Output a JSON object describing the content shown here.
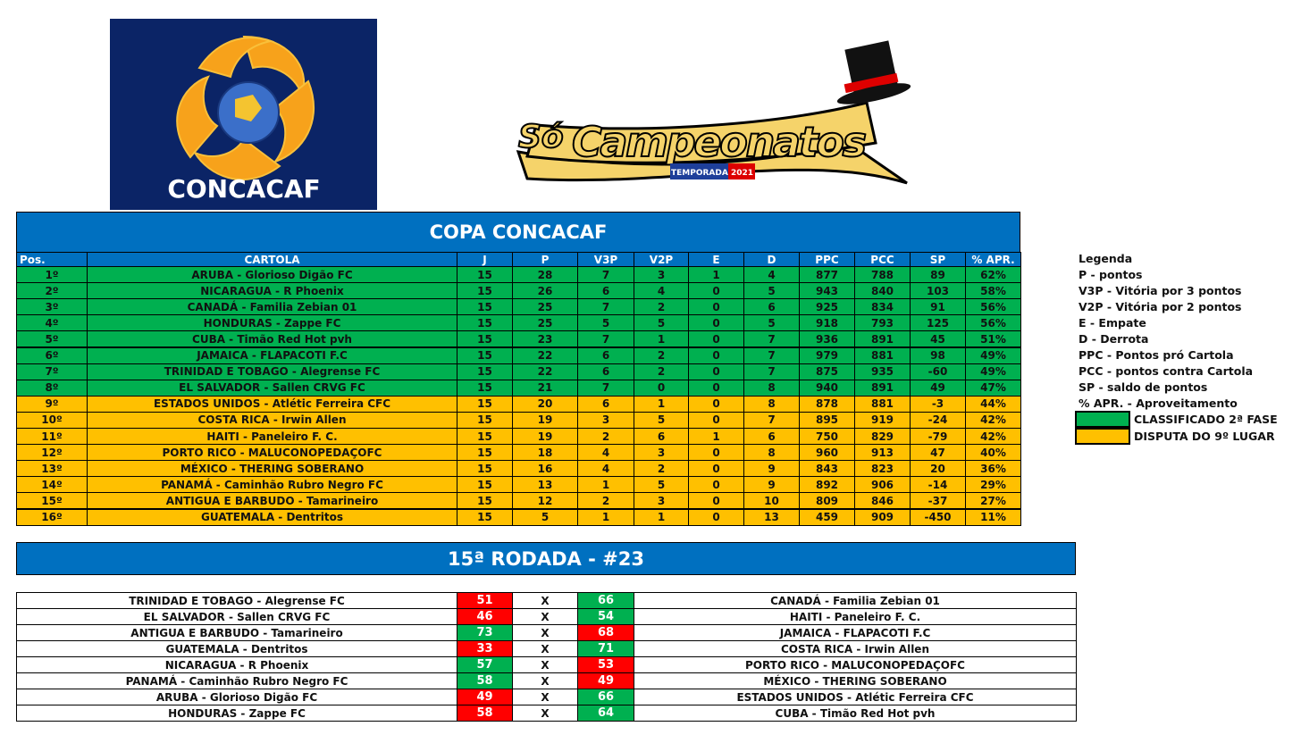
{
  "logos": {
    "concacaf": "CONCACAF",
    "brand_top": "Só",
    "brand_main": "Campeonatos",
    "brand_season": "TEMPORADA 2021"
  },
  "standings": {
    "title": "COPA CONCACAF",
    "columns": [
      "Pos.",
      "CARTOLA",
      "J",
      "P",
      "V3P",
      "V2P",
      "E",
      "D",
      "PPC",
      "PCC",
      "SP",
      "% APR."
    ],
    "rows": [
      {
        "color": "#00b050",
        "cells": [
          "1º",
          "ARUBA - Glorioso Digão FC",
          15,
          28,
          7,
          3,
          1,
          4,
          877,
          788,
          89,
          "62%"
        ]
      },
      {
        "color": "#00b050",
        "cells": [
          "2º",
          "NICARAGUA - R Phoenix",
          15,
          26,
          6,
          4,
          0,
          5,
          943,
          840,
          103,
          "58%"
        ]
      },
      {
        "color": "#00b050",
        "cells": [
          "3º",
          "CANADÁ - Familia Zebian 01",
          15,
          25,
          7,
          2,
          0,
          6,
          925,
          834,
          91,
          "56%"
        ]
      },
      {
        "color": "#00b050",
        "cells": [
          "4º",
          "HONDURAS - Zappe FC",
          15,
          25,
          5,
          5,
          0,
          5,
          918,
          793,
          125,
          "56%"
        ]
      },
      {
        "color": "#00b050",
        "cells": [
          "5º",
          "CUBA - Timão Red Hot pvh",
          15,
          23,
          7,
          1,
          0,
          7,
          936,
          891,
          45,
          "51%"
        ]
      },
      {
        "color": "#00b050",
        "cells": [
          "6º",
          "JAMAICA - FLAPACOTI F.C",
          15,
          22,
          6,
          2,
          0,
          7,
          979,
          881,
          98,
          "49%"
        ]
      },
      {
        "color": "#00b050",
        "cells": [
          "7º",
          "TRINIDAD E TOBAGO - Alegrense FC",
          15,
          22,
          6,
          2,
          0,
          7,
          875,
          935,
          -60,
          "49%"
        ]
      },
      {
        "color": "#00b050",
        "cells": [
          "8º",
          "EL SALVADOR - Sallen CRVG FC",
          15,
          21,
          7,
          0,
          0,
          8,
          940,
          891,
          49,
          "47%"
        ]
      },
      {
        "color": "#ffc000",
        "cells": [
          "9º",
          "ESTADOS UNIDOS - Atlétic Ferreira CFC",
          15,
          20,
          6,
          1,
          0,
          8,
          878,
          881,
          -3,
          "44%"
        ]
      },
      {
        "color": "#ffc000",
        "cells": [
          "10º",
          "COSTA RICA - Irwin Allen",
          15,
          19,
          3,
          5,
          0,
          7,
          895,
          919,
          -24,
          "42%"
        ]
      },
      {
        "color": "#ffc000",
        "cells": [
          "11º",
          "HAITI - Paneleiro F. C.",
          15,
          19,
          2,
          6,
          1,
          6,
          750,
          829,
          -79,
          "42%"
        ]
      },
      {
        "color": "#ffc000",
        "cells": [
          "12º",
          "PORTO RICO - MALUCONOPEDAÇOFC",
          15,
          18,
          4,
          3,
          0,
          8,
          960,
          913,
          47,
          "40%"
        ]
      },
      {
        "color": "#ffc000",
        "cells": [
          "13º",
          "MÉXICO - THERING SOBERANO",
          15,
          16,
          4,
          2,
          0,
          9,
          843,
          823,
          20,
          "36%"
        ]
      },
      {
        "color": "#ffc000",
        "cells": [
          "14º",
          "PANAMÁ - Caminhão Rubro Negro FC",
          15,
          13,
          1,
          5,
          0,
          9,
          892,
          906,
          -14,
          "29%"
        ]
      },
      {
        "color": "#ffc000",
        "cells": [
          "15º",
          "ANTIGUA E BARBUDO - Tamarineiro",
          15,
          12,
          2,
          3,
          0,
          10,
          809,
          846,
          -37,
          "27%"
        ]
      },
      {
        "color": "#ffc000",
        "cells": [
          "16º",
          "GUATEMALA - Dentritos",
          15,
          5,
          1,
          1,
          0,
          13,
          459,
          909,
          -450,
          "11%"
        ]
      }
    ]
  },
  "legend": {
    "title": "Legenda",
    "items": [
      "P - pontos",
      "V3P - Vitória por 3 pontos",
      "V2P - Vitória por 2 pontos",
      "E - Empate",
      "D - Derrota",
      "PPC - Pontos pró Cartola",
      "PCC - pontos contra Cartola",
      "SP - saldo de pontos",
      "% APR. - Aproveitamento"
    ],
    "keys": [
      {
        "color": "#00b050",
        "label": "CLASSIFICADO 2ª FASE"
      },
      {
        "color": "#ffc000",
        "label": "DISPUTA DO 9º LUGAR"
      }
    ]
  },
  "round": {
    "title": "15ª RODADA - #23",
    "win_color": "#00b050",
    "loss_color": "#ff0000",
    "matches": [
      {
        "home": "TRINIDAD E TOBAGO - Alegrense FC",
        "home_score": 51,
        "vs": "X",
        "away_score": 66,
        "away": "CANADÁ - Familia Zebian 01"
      },
      {
        "home": "EL SALVADOR - Sallen CRVG FC",
        "home_score": 46,
        "vs": "X",
        "away_score": 54,
        "away": "HAITI - Paneleiro F. C."
      },
      {
        "home": "ANTIGUA E BARBUDO - Tamarineiro",
        "home_score": 73,
        "vs": "X",
        "away_score": 68,
        "away": "JAMAICA - FLAPACOTI F.C"
      },
      {
        "home": "GUATEMALA - Dentritos",
        "home_score": 33,
        "vs": "X",
        "away_score": 71,
        "away": "COSTA RICA - Irwin Allen"
      },
      {
        "home": "NICARAGUA - R Phoenix",
        "home_score": 57,
        "vs": "X",
        "away_score": 53,
        "away": "PORTO RICO - MALUCONOPEDAÇOFC"
      },
      {
        "home": "PANAMÁ - Caminhão Rubro Negro FC",
        "home_score": 58,
        "vs": "X",
        "away_score": 49,
        "away": "MÉXICO - THERING SOBERANO"
      },
      {
        "home": "ARUBA - Glorioso Digão FC",
        "home_score": 49,
        "vs": "X",
        "away_score": 66,
        "away": "ESTADOS UNIDOS - Atlétic Ferreira CFC"
      },
      {
        "home": "HONDURAS - Zappe FC",
        "home_score": 58,
        "vs": "X",
        "away_score": 64,
        "away": "CUBA - Timão Red Hot pvh"
      }
    ]
  }
}
